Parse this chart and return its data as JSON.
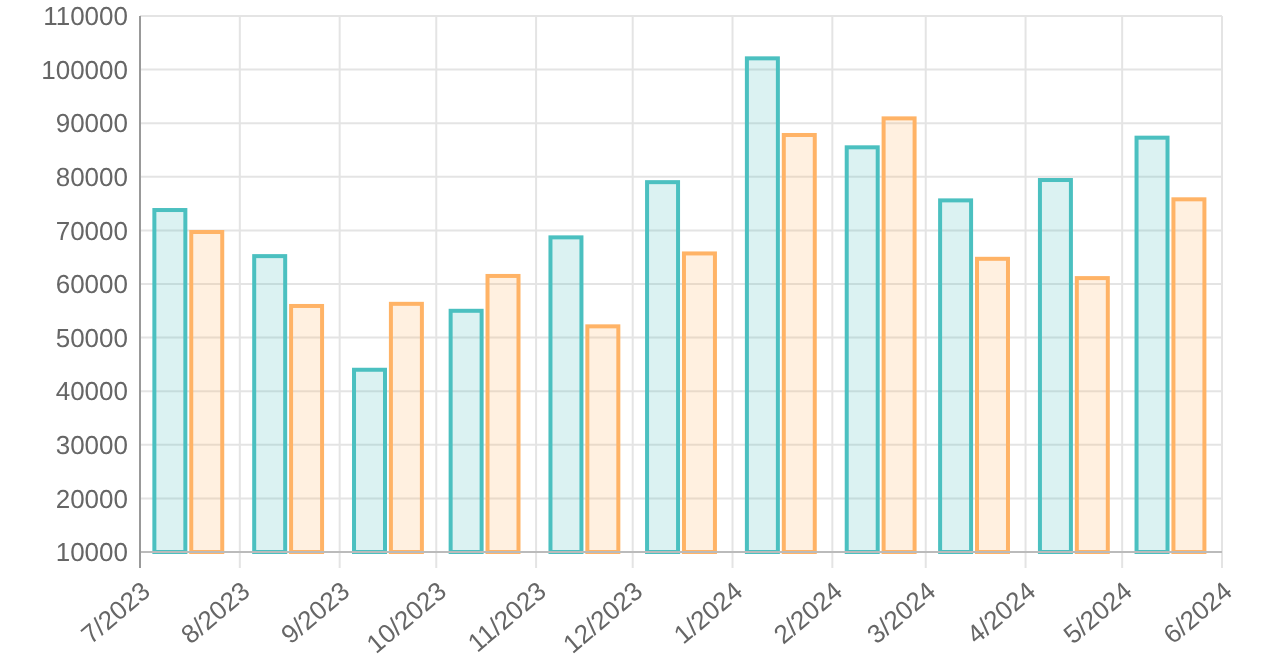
{
  "chart_data": {
    "type": "bar",
    "x": [
      "2023-07-16",
      "2023-08-16",
      "2023-09-16",
      "2023-10-16",
      "2023-11-16",
      "2023-12-16",
      "2024-01-16",
      "2024-02-16",
      "2024-03-16",
      "2024-04-16",
      "2024-05-16"
    ],
    "series": [
      {
        "color": "#4bc0c0",
        "values": [
          73800,
          65200,
          44000,
          55000,
          68700,
          79000,
          102100,
          85500,
          75600,
          79400,
          87300
        ]
      },
      {
        "color": "#ffb366",
        "values": [
          69700,
          55900,
          56300,
          61500,
          52100,
          65700,
          87800,
          90900,
          64700,
          61100,
          75800
        ]
      }
    ],
    "xlim": [
      "2023-07",
      "2024-06"
    ],
    "xticks": [
      {
        "value": "2023-07",
        "label": "7/2023"
      },
      {
        "value": "2023-08",
        "label": "8/2023"
      },
      {
        "value": "2023-09",
        "label": "9/2023"
      },
      {
        "value": "2023-10",
        "label": "10/2023"
      },
      {
        "value": "2023-11",
        "label": "11/2023"
      },
      {
        "value": "2023-12",
        "label": "12/2023"
      },
      {
        "value": "2024-01",
        "label": "1/2024"
      },
      {
        "value": "2024-02",
        "label": "2/2024"
      },
      {
        "value": "2024-03",
        "label": "3/2024"
      },
      {
        "value": "2024-04",
        "label": "4/2024"
      },
      {
        "value": "2024-05",
        "label": "5/2024"
      },
      {
        "value": "2024-06",
        "label": "6/2024"
      }
    ],
    "ylim": [
      10000,
      110000
    ],
    "yticks": [
      10000,
      20000,
      30000,
      40000,
      50000,
      60000,
      70000,
      80000,
      90000,
      100000,
      110000
    ],
    "grid": true
  }
}
